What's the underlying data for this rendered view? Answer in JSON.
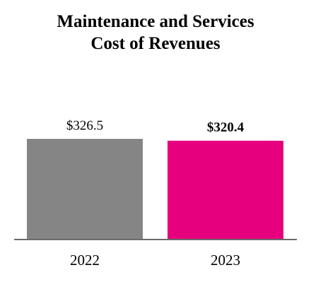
{
  "chart_data": {
    "type": "bar",
    "title_lines": [
      "Maintenance and Services",
      "Cost of Revenues"
    ],
    "categories": [
      "2022",
      "2023"
    ],
    "values": [
      326.5,
      320.4
    ],
    "value_labels": [
      "$326.5",
      "$320.4"
    ],
    "emphasized_index": 1,
    "colors": [
      "#858585",
      "#e6007e"
    ],
    "axis_color": "#6b6b6b",
    "ylim": [
      0,
      400
    ],
    "grid": false,
    "legend": "none",
    "xlabel": "",
    "ylabel": ""
  }
}
